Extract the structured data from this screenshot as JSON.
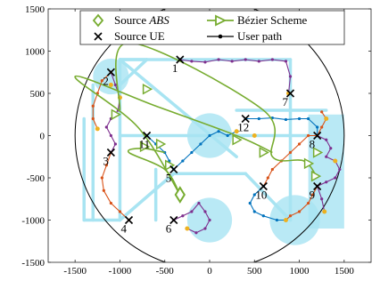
{
  "chart_data": {
    "type": "scatter",
    "title": "",
    "xlabel": "",
    "ylabel": "",
    "xlim": [
      -1800,
      1800
    ],
    "ylim": [
      -1500,
      1500
    ],
    "x_ticks": [
      -1500,
      -1000,
      -500,
      0,
      500,
      1000,
      1500
    ],
    "y_ticks": [
      1500,
      1000,
      500,
      0,
      -500,
      -1000,
      -1500
    ],
    "grid": false,
    "legend_position": "top",
    "legend": [
      {
        "label": "Source ABS",
        "italic_part": "ABS",
        "prefix": "Source ",
        "marker": "diamond",
        "color": "#77ac30"
      },
      {
        "label": "Bézier Scheme",
        "marker": "triangle-right-line",
        "color": "#77ac30"
      },
      {
        "label": "Source UE",
        "marker": "x",
        "color": "#000000"
      },
      {
        "label": "User path",
        "marker": "dot-line",
        "color": "#000000"
      }
    ],
    "boundary_circle": {
      "cx": 0,
      "cy": 0,
      "r": 1500
    },
    "abs_source": {
      "x": -330,
      "y": -700
    },
    "coverage_zones": [
      {
        "cx": -1100,
        "cy": 700,
        "r": 200
      },
      {
        "cx": 0,
        "cy": 0,
        "r": 250
      },
      {
        "cx": 0,
        "cy": -1000,
        "r": 250
      },
      {
        "cx": 950,
        "cy": -1000,
        "r": 280
      }
    ],
    "coverage_rect": {
      "x0": 1100,
      "y0": -1100,
      "x1": 1500,
      "y1": 250
    },
    "road_network": [
      [
        [
          -1400,
          -1000
        ],
        [
          -1400,
          200
        ]
      ],
      [
        [
          -1300,
          -1000
        ],
        [
          -1300,
          600
        ]
      ],
      [
        [
          -1000,
          900
        ],
        [
          900,
          900
        ]
      ],
      [
        [
          -1000,
          900
        ],
        [
          -1000,
          -1000
        ]
      ],
      [
        [
          -1400,
          -1000
        ],
        [
          -1000,
          -1000
        ]
      ],
      [
        [
          -1000,
          -1000
        ],
        [
          -400,
          -450
        ]
      ],
      [
        [
          -400,
          -450
        ],
        [
          400,
          -450
        ]
      ],
      [
        [
          -1000,
          0
        ],
        [
          1100,
          0
        ]
      ],
      [
        [
          300,
          300
        ],
        [
          1300,
          300
        ]
      ],
      [
        [
          900,
          900
        ],
        [
          900,
          -1000
        ]
      ],
      [
        [
          -1000,
          900
        ],
        [
          -700,
          900
        ]
      ],
      [
        [
          -700,
          900
        ],
        [
          -1000,
          600
        ]
      ],
      [
        [
          -1000,
          900
        ],
        [
          300,
          -250
        ]
      ],
      [
        [
          -600,
          -1000
        ],
        [
          -600,
          -400
        ]
      ],
      [
        [
          400,
          -450
        ],
        [
          900,
          -1000
        ]
      ]
    ],
    "ue_sources": [
      {
        "id": "1",
        "x": -330,
        "y": 900
      },
      {
        "id": "2",
        "x": -1100,
        "y": 750
      },
      {
        "id": "3",
        "x": -1100,
        "y": -200
      },
      {
        "id": "4",
        "x": -900,
        "y": -1000
      },
      {
        "id": "5",
        "x": -400,
        "y": -400
      },
      {
        "id": "6",
        "x": -400,
        "y": -1000
      },
      {
        "id": "7",
        "x": 900,
        "y": 500
      },
      {
        "id": "8",
        "x": 1200,
        "y": 0
      },
      {
        "id": "9",
        "x": 1200,
        "y": -600
      },
      {
        "id": "10",
        "x": 600,
        "y": -600
      },
      {
        "id": "11",
        "x": -700,
        "y": 0
      },
      {
        "id": "12",
        "x": 400,
        "y": 200
      }
    ],
    "user_paths": [
      {
        "color": "#7e2f8e",
        "points": [
          [
            -330,
            900
          ],
          [
            -200,
            880
          ],
          [
            -50,
            870
          ],
          [
            100,
            900
          ],
          [
            250,
            880
          ],
          [
            400,
            900
          ],
          [
            550,
            880
          ],
          [
            700,
            900
          ],
          [
            850,
            880
          ],
          [
            900,
            700
          ],
          [
            880,
            500
          ]
        ]
      },
      {
        "color": "#7e2f8e",
        "points": [
          [
            -1100,
            750
          ],
          [
            -1050,
            600
          ],
          [
            -1000,
            450
          ],
          [
            -1020,
            300
          ],
          [
            -1100,
            200
          ],
          [
            -1150,
            100
          ],
          [
            -1100,
            0
          ],
          [
            -1050,
            -100
          ],
          [
            -1100,
            -200
          ]
        ]
      },
      {
        "color": "#d95319",
        "points": [
          [
            -1100,
            -200
          ],
          [
            -1150,
            -350
          ],
          [
            -1200,
            -500
          ],
          [
            -1180,
            -650
          ],
          [
            -1100,
            -800
          ],
          [
            -1000,
            -900
          ],
          [
            -900,
            -1000
          ]
        ]
      },
      {
        "color": "#d95319",
        "points": [
          [
            -1100,
            750
          ],
          [
            -1200,
            650
          ],
          [
            -1250,
            500
          ],
          [
            -1300,
            350
          ],
          [
            -1300,
            200
          ],
          [
            -1250,
            80
          ]
        ]
      },
      {
        "color": "#0072bd",
        "points": [
          [
            -700,
            0
          ],
          [
            -600,
            -100
          ],
          [
            -500,
            -200
          ],
          [
            -450,
            -300
          ],
          [
            -400,
            -400
          ]
        ]
      },
      {
        "color": "#0072bd",
        "points": [
          [
            -400,
            -400
          ],
          [
            -300,
            -300
          ],
          [
            -200,
            -200
          ],
          [
            -100,
            -100
          ],
          [
            0,
            0
          ],
          [
            100,
            50
          ],
          [
            200,
            0
          ],
          [
            300,
            50
          ]
        ]
      },
      {
        "color": "#7e2f8e",
        "points": [
          [
            -400,
            -1000
          ],
          [
            -300,
            -950
          ],
          [
            -200,
            -900
          ],
          [
            -120,
            -800
          ],
          [
            -50,
            -900
          ],
          [
            0,
            -1000
          ],
          [
            -50,
            -1100
          ],
          [
            -150,
            -1150
          ],
          [
            -250,
            -1100
          ]
        ]
      },
      {
        "color": "#0072bd",
        "points": [
          [
            400,
            200
          ],
          [
            550,
            200
          ],
          [
            700,
            210
          ],
          [
            850,
            190
          ],
          [
            1000,
            200
          ],
          [
            1100,
            200
          ],
          [
            1200,
            100
          ],
          [
            1200,
            0
          ]
        ]
      },
      {
        "color": "#7e2f8e",
        "points": [
          [
            1200,
            0
          ],
          [
            1300,
            -50
          ],
          [
            1350,
            -150
          ],
          [
            1300,
            -250
          ],
          [
            1400,
            -300
          ],
          [
            1450,
            -400
          ],
          [
            1400,
            -500
          ],
          [
            1300,
            -550
          ],
          [
            1200,
            -600
          ]
        ]
      },
      {
        "color": "#d95319",
        "points": [
          [
            1200,
            -600
          ],
          [
            1150,
            -700
          ],
          [
            1100,
            -800
          ],
          [
            1000,
            -900
          ],
          [
            900,
            -950
          ],
          [
            850,
            -1000
          ]
        ]
      },
      {
        "color": "#d95319",
        "points": [
          [
            600,
            -600
          ],
          [
            650,
            -500
          ],
          [
            700,
            -400
          ],
          [
            800,
            -300
          ],
          [
            900,
            -200
          ],
          [
            1000,
            -100
          ],
          [
            1100,
            0
          ],
          [
            1200,
            0
          ]
        ]
      },
      {
        "color": "#0072bd",
        "points": [
          [
            600,
            -600
          ],
          [
            500,
            -700
          ],
          [
            450,
            -800
          ],
          [
            500,
            -900
          ],
          [
            600,
            -950
          ],
          [
            750,
            -1000
          ],
          [
            850,
            -1000
          ]
        ]
      },
      {
        "color": "#d95319",
        "points": [
          [
            1200,
            0
          ],
          [
            1250,
            100
          ],
          [
            1300,
            200
          ],
          [
            1250,
            280
          ]
        ]
      },
      {
        "color": "#7e2f8e",
        "points": [
          [
            1200,
            -600
          ],
          [
            1250,
            -750
          ],
          [
            1280,
            -900
          ]
        ]
      }
    ],
    "path_end_markers": [
      [
        -1000,
        450
      ],
      [
        -1250,
        80
      ],
      [
        -1100,
        600
      ],
      [
        300,
        50
      ],
      [
        -250,
        -1100
      ],
      [
        1300,
        200
      ],
      [
        1280,
        -900
      ],
      [
        1400,
        -300
      ],
      [
        850,
        -1000
      ],
      [
        880,
        500
      ],
      [
        500,
        0
      ]
    ],
    "bezier_curves": [
      {
        "points": [
          [
            -330,
            -700
          ],
          [
            -500,
            -400
          ],
          [
            -900,
            -200
          ],
          [
            -750,
            -150
          ],
          [
            -500,
            -200
          ]
        ],
        "markers": [
          [
            -550,
            -100
          ],
          [
            -730,
            -130
          ],
          [
            -450,
            -350
          ]
        ]
      },
      {
        "points": [
          [
            -330,
            -700
          ],
          [
            -800,
            100
          ],
          [
            -1500,
            700
          ],
          [
            -600,
            350
          ],
          [
            300,
            0
          ],
          [
            700,
            -200
          ]
        ],
        "markers": [
          [
            -1050,
            250
          ],
          [
            -700,
            550
          ],
          [
            300,
            -50
          ],
          [
            600,
            -200
          ]
        ]
      },
      {
        "points": [
          [
            -1000,
            300
          ],
          [
            -900,
            1100
          ],
          [
            600,
            300
          ],
          [
            700,
            -250
          ],
          [
            1050,
            -300
          ],
          [
            1200,
            -500
          ]
        ],
        "markers": [
          [
            1100,
            -330
          ],
          [
            1200,
            -200
          ],
          [
            1180,
            -480
          ]
        ]
      }
    ]
  }
}
